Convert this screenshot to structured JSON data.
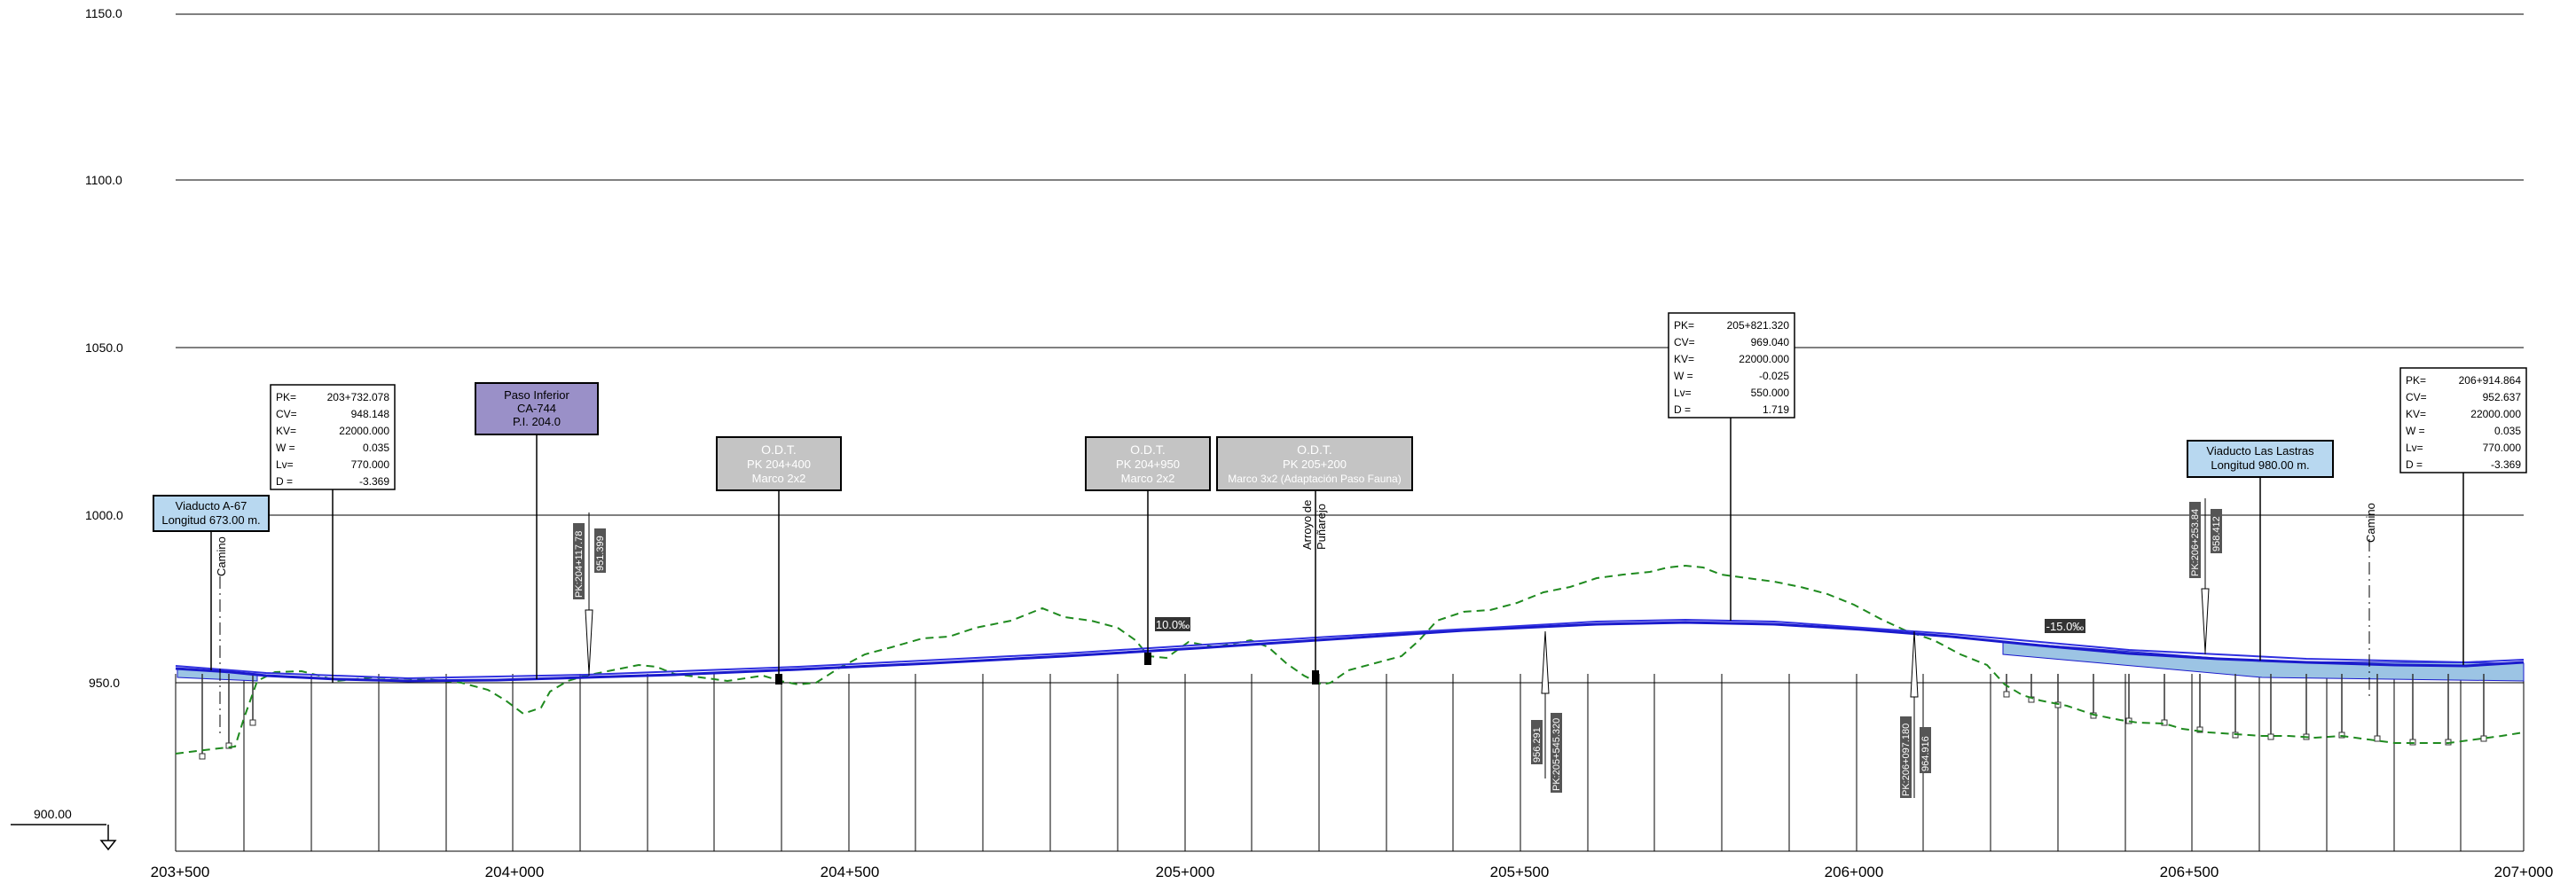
{
  "elevation_labels": [
    "1150.0",
    "1100.0",
    "1050.0",
    "1000.0",
    "950.0"
  ],
  "datum_label": "900.00",
  "chainage_labels": [
    "203+500",
    "204+000",
    "204+500",
    "205+000",
    "205+500",
    "206+000",
    "206+500",
    "207+000"
  ],
  "vertical_curves": [
    {
      "pk": "203+732.078",
      "cv": "948.148",
      "kv": "22000.000",
      "w": "0.035",
      "lv": "770.000",
      "d": "-3.369"
    },
    {
      "pk": "205+821.320",
      "cv": "969.040",
      "kv": "22000.000",
      "w": "-0.025",
      "lv": "550.000",
      "d": "1.719"
    },
    {
      "pk": "206+914.864",
      "cv": "952.637",
      "kv": "22000.000",
      "w": "0.035",
      "lv": "770.000",
      "d": "-3.369"
    }
  ],
  "curve_field_labels": {
    "pk": "PK=",
    "cv": "CV=",
    "kv": "KV=",
    "w": "W =",
    "lv": "Lv=",
    "d": "D ="
  },
  "structures": [
    {
      "lines": [
        "Viaducto A-67",
        "Longitud 673.00 m."
      ],
      "fill": "#b8d8f0",
      "text_color": "#000000"
    },
    {
      "lines": [
        "Paso Inferior",
        "CA-744",
        "P.I. 204.0"
      ],
      "fill": "#9a90c8",
      "text_color": "#000000"
    },
    {
      "lines": [
        "O.D.T.",
        "PK 204+400",
        "Marco 2x2"
      ],
      "fill": "#c4c4c4",
      "text_color": "#ffffff"
    },
    {
      "lines": [
        "O.D.T.",
        "PK 204+950",
        "Marco 2x2"
      ],
      "fill": "#c4c4c4",
      "text_color": "#ffffff"
    },
    {
      "lines": [
        "O.D.T.",
        "PK 205+200",
        "Marco 3x2 (Adaptación Paso Fauna)"
      ],
      "fill": "#c4c4c4",
      "text_color": "#ffffff"
    },
    {
      "lines": [
        "Viaducto Las Lastras",
        "Longitud 980.00 m."
      ],
      "fill": "#b8d8f0",
      "text_color": "#000000"
    }
  ],
  "grades": [
    "10.0‰",
    "-15.0‰"
  ],
  "vertical_labels": [
    "Camino",
    "Arroyo de",
    "Puñarejo",
    "Camino"
  ],
  "marker_labels": [
    "PK:204+117.78",
    "951.399",
    "956.291",
    "PK:205+545.320",
    "PK:206+097.180",
    "964.916",
    "PK:206+253.84",
    "958.412"
  ],
  "colors": {
    "grade_line": "#1a1acc",
    "terrain": "#1f8a1f",
    "viaduct_fill": "#9cc4e4",
    "grid": "#000000"
  }
}
